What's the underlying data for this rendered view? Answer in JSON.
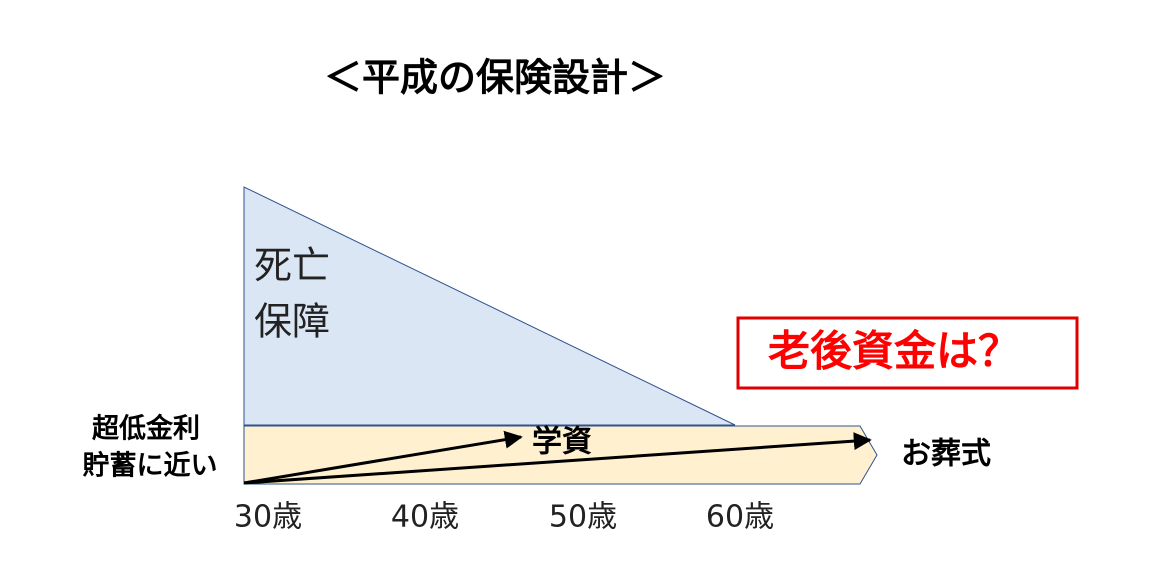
{
  "title": "＜平成の保険設計＞",
  "death_coverage": {
    "lines": [
      "死亡",
      "保障"
    ]
  },
  "callout": "老後資金は？",
  "left_note": {
    "lines": [
      "超低金利",
      "貯蓄に近い"
    ]
  },
  "arrows": [
    {
      "label": "学資"
    },
    {
      "label": "お葬式"
    }
  ],
  "age_axis": [
    "30歳",
    "40歳",
    "50歳",
    "60歳"
  ]
}
